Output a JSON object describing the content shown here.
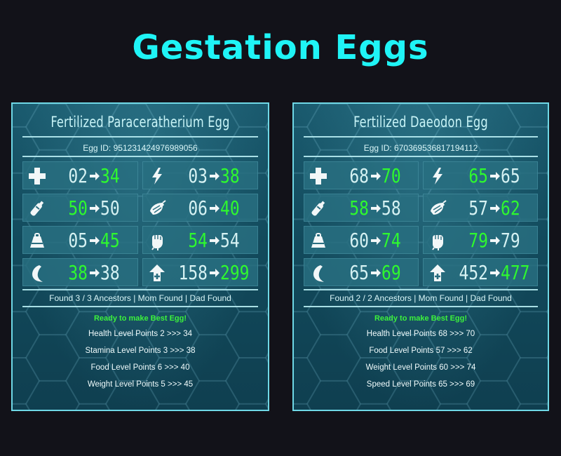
{
  "page_title": "Gestation Eggs",
  "colors": {
    "title": "#1ff4f6",
    "green_value": "#2ef92e",
    "white_value": "#d6f2f3",
    "ready": "#3cf23c"
  },
  "panels": [
    {
      "title": "Fertilized Paraceratherium Egg",
      "egg_id": "Egg ID: 951231424976989056",
      "stats": [
        {
          "icon": "health-cross-icon",
          "from": "02",
          "to": "34",
          "from_green": false,
          "to_green": true
        },
        {
          "icon": "stamina-bolt-icon",
          "from": "03",
          "to": "38",
          "from_green": false,
          "to_green": true
        },
        {
          "icon": "oxygen-tank-icon",
          "from": "50",
          "to": "50",
          "from_green": true,
          "to_green": false
        },
        {
          "icon": "food-icon",
          "from": "06",
          "to": "40",
          "from_green": false,
          "to_green": true
        },
        {
          "icon": "weight-icon",
          "from": "05",
          "to": "45",
          "from_green": false,
          "to_green": true
        },
        {
          "icon": "melee-fist-icon",
          "from": "54",
          "to": "54",
          "from_green": true,
          "to_green": false
        },
        {
          "icon": "speed-boot-icon",
          "from": "38",
          "to": "38",
          "from_green": true,
          "to_green": false
        },
        {
          "icon": "level-up-icon",
          "from": "158",
          "to": "299",
          "from_green": false,
          "to_green": true
        }
      ],
      "ancestors": "Found 3 / 3 Ancestors | Mom Found | Dad Found",
      "ready": "Ready to make Best Egg!",
      "lines": [
        "Health Level Points 2 >>> 34",
        "Stamina Level Points 3 >>> 38",
        "Food Level Points 6 >>> 40",
        "Weight Level Points 5 >>> 45"
      ]
    },
    {
      "title": "Fertilized Daeodon Egg",
      "egg_id": "Egg ID: 670369536817194112",
      "stats": [
        {
          "icon": "health-cross-icon",
          "from": "68",
          "to": "70",
          "from_green": false,
          "to_green": true
        },
        {
          "icon": "stamina-bolt-icon",
          "from": "65",
          "to": "65",
          "from_green": true,
          "to_green": false
        },
        {
          "icon": "oxygen-tank-icon",
          "from": "58",
          "to": "58",
          "from_green": true,
          "to_green": false
        },
        {
          "icon": "food-icon",
          "from": "57",
          "to": "62",
          "from_green": false,
          "to_green": true
        },
        {
          "icon": "weight-icon",
          "from": "60",
          "to": "74",
          "from_green": false,
          "to_green": true
        },
        {
          "icon": "melee-fist-icon",
          "from": "79",
          "to": "79",
          "from_green": true,
          "to_green": false
        },
        {
          "icon": "speed-boot-icon",
          "from": "65",
          "to": "69",
          "from_green": false,
          "to_green": true
        },
        {
          "icon": "level-up-icon",
          "from": "452",
          "to": "477",
          "from_green": false,
          "to_green": true
        }
      ],
      "ancestors": "Found 2 / 2 Ancestors | Mom Found | Dad Found",
      "ready": "Ready to make Best Egg!",
      "lines": [
        "Health Level Points 68 >>> 70",
        "Food Level Points 57 >>> 62",
        "Weight Level Points 60 >>> 74",
        "Speed Level Points 65 >>> 69"
      ]
    }
  ]
}
